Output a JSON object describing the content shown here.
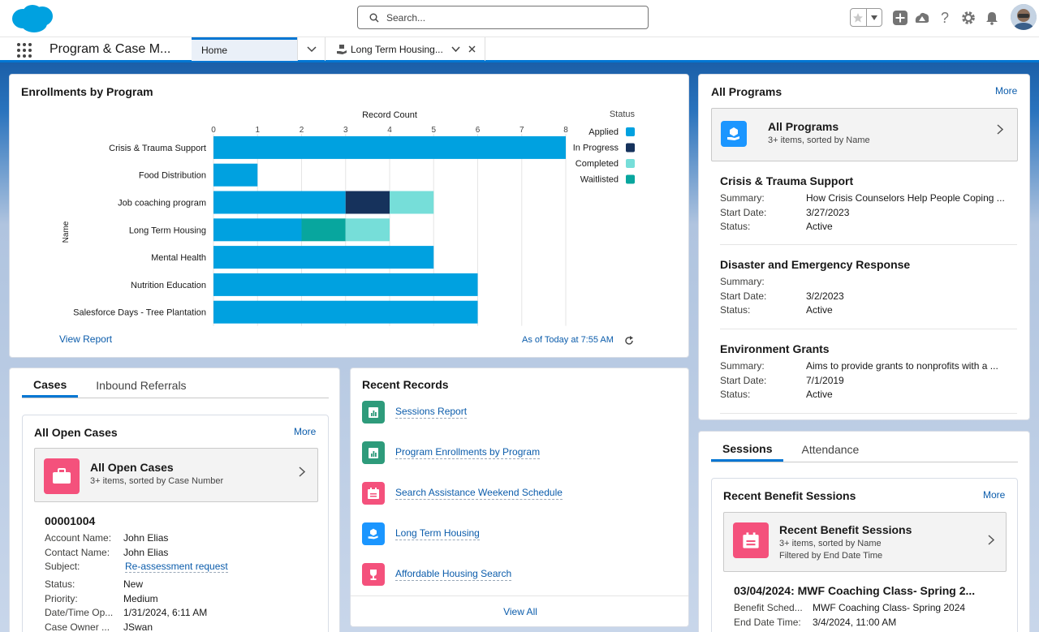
{
  "header": {
    "search_placeholder": "Search..."
  },
  "nav": {
    "app_name": "Program & Case M...",
    "tabs": [
      {
        "label": "Home"
      },
      {
        "label": "Long Term Housing..."
      }
    ]
  },
  "enrollments": {
    "title": "Enrollments by Program",
    "view_report": "View Report",
    "as_of": "As of Today at 7:55 AM"
  },
  "chart_data": {
    "type": "bar",
    "orientation": "horizontal",
    "stacked": true,
    "xlabel": "Record Count",
    "ylabel": "Name",
    "xlim": [
      0,
      8
    ],
    "x_ticks": [
      "0",
      "1",
      "2",
      "3",
      "4",
      "5",
      "6",
      "7",
      "8"
    ],
    "legend_title": "Status",
    "legend_position": "right",
    "categories": [
      "Crisis & Trauma Support",
      "Food Distribution",
      "Job coaching program",
      "Long Term Housing",
      "Mental Health",
      "Nutrition Education",
      "Salesforce Days - Tree Plantation"
    ],
    "series": [
      {
        "name": "Applied",
        "color": "#00a1e0",
        "values": [
          8,
          1,
          3,
          2,
          5,
          6,
          6
        ]
      },
      {
        "name": "In Progress",
        "color": "#16325c",
        "values": [
          0,
          0,
          1,
          0,
          0,
          0,
          0
        ]
      },
      {
        "name": "Completed",
        "color": "#76ded9",
        "values": [
          0,
          0,
          1,
          1,
          0,
          0,
          0
        ]
      },
      {
        "name": "Waitlisted",
        "color": "#08a69e",
        "values": [
          0,
          0,
          0,
          1,
          0,
          0,
          0
        ]
      }
    ],
    "grid": true
  },
  "programs": {
    "title": "All Programs",
    "more": "More",
    "list_title": "All Programs",
    "list_sub": "3+ items, sorted by Name",
    "field_labels": {
      "summary": "Summary:",
      "start": "Start Date:",
      "status": "Status:"
    },
    "items": [
      {
        "name": "Crisis & Trauma Support",
        "summary": "How Crisis Counselors Help People Coping ...",
        "start": "3/27/2023",
        "status": "Active"
      },
      {
        "name": "Disaster and Emergency Response",
        "summary": "",
        "start": "3/2/2023",
        "status": "Active"
      },
      {
        "name": "Environment Grants",
        "summary": "Aims to provide grants to nonprofits with a ...",
        "start": "7/1/2019",
        "status": "Active"
      }
    ]
  },
  "cases": {
    "tabs": [
      "Cases",
      "Inbound Referrals"
    ],
    "title": "All Open Cases",
    "more": "More",
    "list_title": "All Open Cases",
    "list_sub": "3+ items, sorted by Case Number",
    "record": {
      "number": "00001004",
      "fields": [
        {
          "k": "Account Name:",
          "v": "John Elias"
        },
        {
          "k": "Contact Name:",
          "v": "John Elias"
        },
        {
          "k": "Subject:",
          "v": "Re-assessment request",
          "link": true
        },
        {
          "k": "Status:",
          "v": "New"
        },
        {
          "k": "Priority:",
          "v": "Medium"
        },
        {
          "k": "Date/Time Op...",
          "v": "1/31/2024, 6:11 AM"
        },
        {
          "k": "Case Owner ...",
          "v": "JSwan"
        }
      ]
    }
  },
  "recent": {
    "title": "Recent Records",
    "items": [
      {
        "label": "Sessions Report",
        "color": "#2e9b7b"
      },
      {
        "label": "Program Enrollments by Program",
        "color": "#2e9b7b"
      },
      {
        "label": "Search Assistance Weekend Schedule",
        "color": "#f4517c"
      },
      {
        "label": "Long Term Housing",
        "color": "#1b96ff"
      },
      {
        "label": "Affordable Housing Search",
        "color": "#f4517c"
      }
    ],
    "view_all": "View All"
  },
  "sessions": {
    "tabs": [
      "Sessions",
      "Attendance"
    ],
    "title": "Recent Benefit Sessions",
    "more": "More",
    "list_title": "Recent Benefit Sessions",
    "list_sub": "3+ items, sorted by Name",
    "list_sub2": "Filtered by End Date Time",
    "record": {
      "name": "03/04/2024: MWF Coaching Class- Spring 2...",
      "fields": [
        {
          "k": "Benefit Sched...",
          "v": "MWF Coaching Class- Spring 2024"
        },
        {
          "k": "End Date Time:",
          "v": "3/4/2024, 11:00 AM"
        }
      ]
    }
  }
}
